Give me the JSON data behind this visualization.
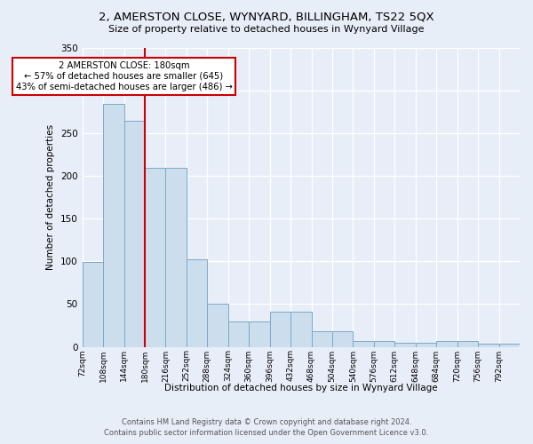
{
  "title": "2, AMERSTON CLOSE, WYNYARD, BILLINGHAM, TS22 5QX",
  "subtitle": "Size of property relative to detached houses in Wynyard Village",
  "xlabel": "Distribution of detached houses by size in Wynyard Village",
  "ylabel": "Number of detached properties",
  "footnote1": "Contains HM Land Registry data © Crown copyright and database right 2024.",
  "footnote2": "Contains public sector information licensed under the Open Government Licence v3.0.",
  "annotation_line1": "2 AMERSTON CLOSE: 180sqm",
  "annotation_line2": "← 57% of detached houses are smaller (645)",
  "annotation_line3": "43% of semi-detached houses are larger (486) →",
  "bar_heights": [
    99,
    285,
    265,
    210,
    210,
    102,
    51,
    30,
    30,
    41,
    41,
    18,
    18,
    7,
    7,
    5,
    5,
    7,
    7,
    4,
    4
  ],
  "bin_edges": [
    72,
    108,
    144,
    180,
    216,
    252,
    288,
    324,
    360,
    396,
    432,
    468,
    504,
    540,
    576,
    612,
    648,
    684,
    720,
    756,
    792,
    828
  ],
  "tick_labels": [
    "72sqm",
    "108sqm",
    "144sqm",
    "180sqm",
    "216sqm",
    "252sqm",
    "288sqm",
    "324sqm",
    "360sqm",
    "396sqm",
    "432sqm",
    "468sqm",
    "504sqm",
    "540sqm",
    "576sqm",
    "612sqm",
    "648sqm",
    "684sqm",
    "720sqm",
    "756sqm",
    "792sqm"
  ],
  "property_size": 180,
  "bar_color": "#ccdded",
  "bar_edge_color": "#7aaac8",
  "red_line_color": "#cc0000",
  "annotation_box_edge": "#cc0000",
  "background_color": "#e8eef8",
  "grid_color": "#ffffff",
  "ylim": [
    0,
    350
  ],
  "yticks": [
    0,
    50,
    100,
    150,
    200,
    250,
    300,
    350
  ]
}
